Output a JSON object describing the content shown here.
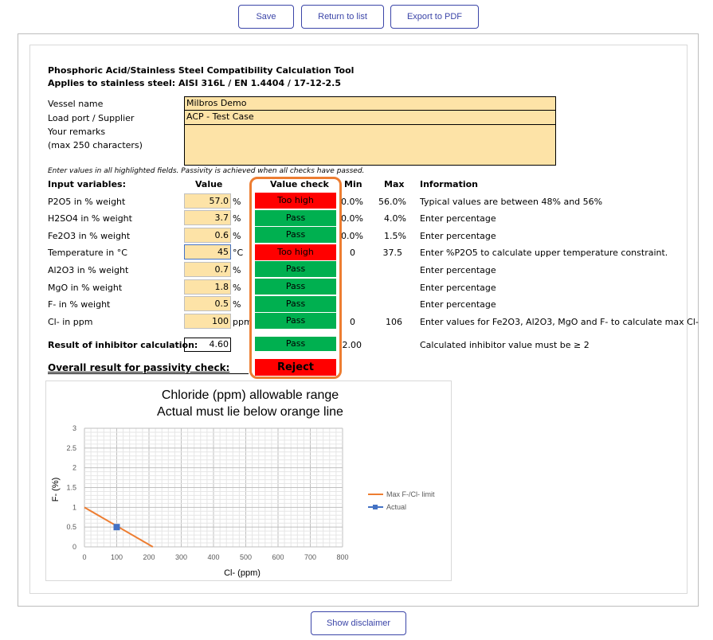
{
  "toolbar": {
    "save_label": "Save",
    "return_label": "Return to list",
    "export_label": "Export to PDF"
  },
  "tool": {
    "title": "Phosphoric Acid/Stainless Steel Compatibility Calculation Tool",
    "subtitle": "Applies to stainless steel: AISI 316L / EN 1.4404 / 17-12-2.5"
  },
  "meta": {
    "vessel_label": "Vessel name",
    "vessel_value": "Milbros Demo",
    "port_label": "Load port / Supplier",
    "port_value": "ACP - Test Case",
    "remarks_label": "Your remarks",
    "remarks_hint": "(max 250 characters)",
    "remarks_value": ""
  },
  "note": "Enter values in all highlighted fields. Passivity is achieved when all checks have passed.",
  "headers": {
    "input": "Input variables:",
    "value": "Value",
    "check": "Value check",
    "min": "Min",
    "max": "Max",
    "info": "Information"
  },
  "rows": [
    {
      "label": "P2O5 in % weight",
      "value": "57.0",
      "unit": "%",
      "check": "Too high",
      "status": "bad",
      "min": "0.0%",
      "max": "56.0%",
      "info": "Typical values are between 48% and 56%"
    },
    {
      "label": "H2SO4 in % weight",
      "value": "3.7",
      "unit": "%",
      "check": "Pass",
      "status": "pass",
      "min": "0.0%",
      "max": "4.0%",
      "info": "Enter percentage"
    },
    {
      "label": "Fe2O3 in % weight",
      "value": "0.6",
      "unit": "%",
      "check": "Pass",
      "status": "pass",
      "min": "0.0%",
      "max": "1.5%",
      "info": "Enter percentage"
    },
    {
      "label": "Temperature in °C",
      "value": "45",
      "unit": "°C",
      "check": "Too high",
      "status": "bad",
      "min": "0",
      "max": "37.5",
      "info": "Enter %P2O5 to calculate upper temperature constraint."
    },
    {
      "label": "Al2O3 in % weight",
      "value": "0.7",
      "unit": "%",
      "check": "Pass",
      "status": "pass",
      "min": "",
      "max": "",
      "info": "Enter percentage"
    },
    {
      "label": "MgO in % weight",
      "value": "1.8",
      "unit": "%",
      "check": "Pass",
      "status": "pass",
      "min": "",
      "max": "",
      "info": "Enter percentage"
    },
    {
      "label": "F- in % weight",
      "value": "0.5",
      "unit": "%",
      "check": "Pass",
      "status": "pass",
      "min": "",
      "max": "",
      "info": "Enter percentage"
    },
    {
      "label": "Cl- in ppm",
      "value": "100",
      "unit": "ppm",
      "check": "Pass",
      "status": "pass",
      "min": "0",
      "max": "106",
      "info": "Enter values for Fe2O3, Al2O3, MgO and F- to calculate max Cl-"
    }
  ],
  "inhibitor": {
    "label": "Result of inhibitor calculation:",
    "value": "4.60",
    "check": "Pass",
    "min": "2.00",
    "info": "Calculated inhibitor value must be ≥ 2"
  },
  "overall": {
    "label": "Overall result for passivity check:",
    "result": "Reject"
  },
  "colors": {
    "pass": "#00b050",
    "fail": "#ff0000",
    "input_fill": "#fde3a7",
    "highlight_border": "#ed7d31",
    "button_text": "#3b45a8",
    "limit_line": "#ed7d31",
    "actual_marker": "#4472c4"
  },
  "chart_data": {
    "type": "line",
    "title": "Chloride (ppm) allowable range",
    "subtitle": "Actual must lie below orange line",
    "xlabel": "Cl- (ppm)",
    "ylabel": "F- (%)",
    "xlim": [
      0,
      800
    ],
    "ylim": [
      0,
      3
    ],
    "xticks": [
      "0",
      "100",
      "200",
      "300",
      "400",
      "500",
      "600",
      "700",
      "800"
    ],
    "yticks": [
      "0",
      "0.5",
      "1",
      "1.5",
      "2",
      "2.5",
      "3"
    ],
    "grid": true,
    "legend_position": "right",
    "series": [
      {
        "name": "Max F-/Cl- limit",
        "x": [
          0,
          212
        ],
        "y": [
          1.0,
          0.0
        ],
        "color": "#ed7d31"
      },
      {
        "name": "Actual",
        "x": [
          100
        ],
        "y": [
          0.5
        ],
        "color": "#4472c4",
        "marker": "square"
      }
    ]
  },
  "footer": {
    "disclaimer_label": "Show disclaimer"
  }
}
